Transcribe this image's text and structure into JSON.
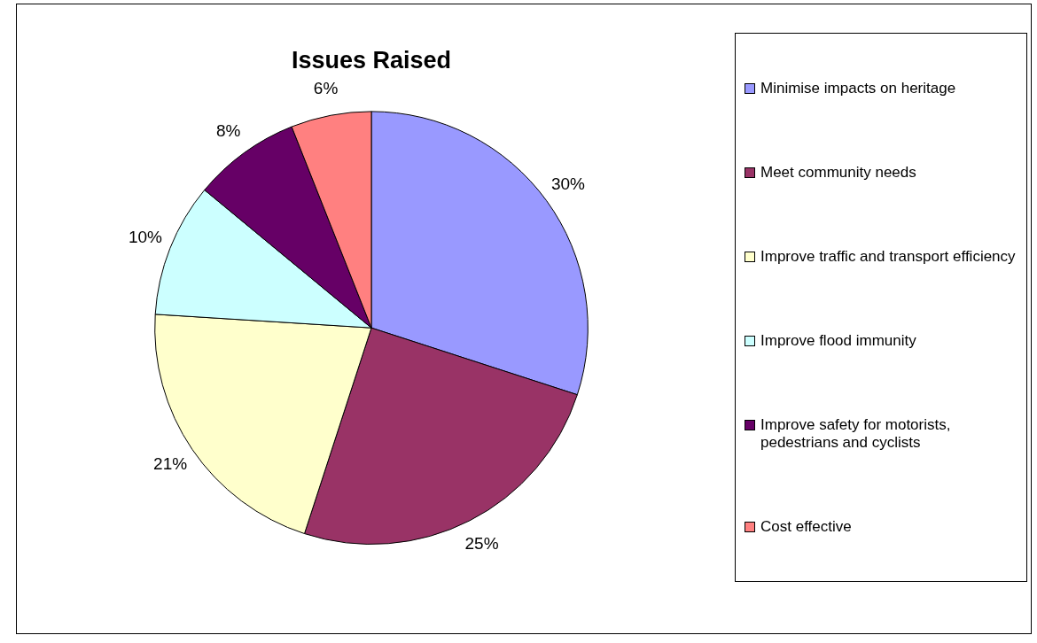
{
  "chart_data": {
    "type": "pie",
    "title": "Issues Raised",
    "categories": [
      "Minimise impacts on heritage",
      "Meet community needs",
      "Improve traffic and transport efficiency",
      "Improve flood immunity",
      "Improve safety for motorists, pedestrians and cyclists",
      "Cost effective"
    ],
    "values": [
      30,
      25,
      21,
      10,
      8,
      6
    ],
    "value_labels": [
      "30%",
      "25%",
      "21%",
      "10%",
      "8%",
      "6%"
    ],
    "colors": [
      "#9999ff",
      "#993366",
      "#ffffcc",
      "#ccffff",
      "#660066",
      "#ff8080"
    ],
    "legend": "right"
  }
}
